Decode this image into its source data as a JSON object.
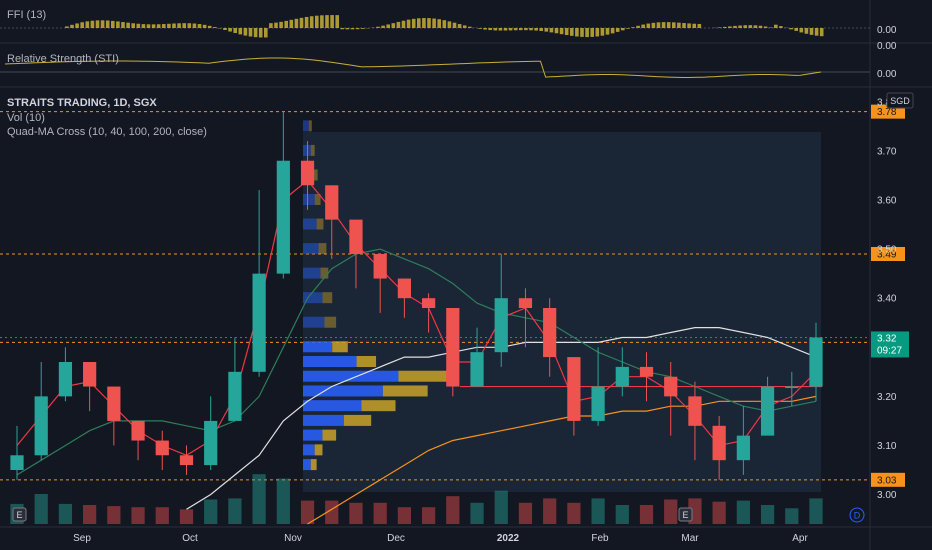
{
  "chart_data": {
    "type": "candlestick",
    "symbol_line": "STRAITS TRADING, 1D, SGX",
    "currency": "SGD",
    "indicators": [
      "Vol (10)",
      "Quad-MA Cross (10, 40, 100, 200, close)"
    ],
    "price_axis": {
      "range": [
        2.94,
        3.82
      ],
      "ticks": [
        "3.00",
        "3.10",
        "3.20",
        "3.30",
        "3.40",
        "3.50",
        "3.60",
        "3.70",
        "3.80"
      ]
    },
    "time_axis": {
      "labels": [
        "Sep",
        "Oct",
        "Nov",
        "Dec",
        "2022",
        "Feb",
        "Mar",
        "Apr"
      ]
    },
    "horizontal_levels": [
      {
        "value": 3.78,
        "label": "3.78",
        "color": "#f7931a"
      },
      {
        "value": 3.49,
        "label": "3.49",
        "color": "#f7931a"
      },
      {
        "value": 3.31,
        "label": "3.31",
        "color": "#f7931a"
      },
      {
        "value": 3.03,
        "label": "3.03",
        "color": "#f7931a"
      }
    ],
    "support_line": {
      "value": 3.22,
      "color": "#f23645"
    },
    "last_price": {
      "value": "3.32",
      "countdown": "09:27",
      "color": "#089981"
    },
    "series": {
      "dates": [
        "2021-08-16",
        "2021-08-23",
        "2021-08-30",
        "2021-09-06",
        "2021-09-13",
        "2021-09-20",
        "2021-09-27",
        "2021-10-04",
        "2021-10-11",
        "2021-10-18",
        "2021-10-25",
        "2021-11-01",
        "2021-11-08",
        "2021-11-15",
        "2021-11-22",
        "2021-11-29",
        "2021-12-06",
        "2021-12-13",
        "2021-12-20",
        "2021-12-27",
        "2022-01-03",
        "2022-01-10",
        "2022-01-17",
        "2022-01-24",
        "2022-01-31",
        "2022-02-07",
        "2022-02-14",
        "2022-02-21",
        "2022-02-28",
        "2022-03-07",
        "2022-03-14",
        "2022-03-21",
        "2022-03-28",
        "2022-04-04"
      ],
      "close": [
        3.08,
        3.2,
        3.27,
        3.22,
        3.15,
        3.11,
        3.08,
        3.06,
        3.15,
        3.25,
        3.45,
        3.68,
        3.63,
        3.56,
        3.49,
        3.44,
        3.4,
        3.38,
        3.22,
        3.29,
        3.4,
        3.38,
        3.28,
        3.15,
        3.22,
        3.26,
        3.24,
        3.2,
        3.14,
        3.07,
        3.12,
        3.22,
        3.22,
        3.32
      ],
      "high": [
        3.14,
        3.27,
        3.3,
        3.27,
        3.19,
        3.15,
        3.13,
        3.1,
        3.2,
        3.32,
        3.62,
        3.78,
        3.72,
        3.62,
        3.54,
        3.49,
        3.44,
        3.41,
        3.38,
        3.34,
        3.49,
        3.42,
        3.4,
        3.24,
        3.3,
        3.3,
        3.29,
        3.27,
        3.23,
        3.16,
        3.18,
        3.24,
        3.25,
        3.35
      ],
      "low": [
        3.03,
        3.07,
        3.19,
        3.17,
        3.1,
        3.07,
        3.05,
        3.04,
        3.05,
        3.16,
        3.24,
        3.44,
        3.58,
        3.48,
        3.42,
        3.37,
        3.36,
        3.33,
        3.2,
        3.22,
        3.26,
        3.3,
        3.24,
        3.12,
        3.14,
        3.2,
        3.19,
        3.12,
        3.07,
        3.03,
        3.04,
        3.14,
        3.18,
        3.19
      ],
      "ma10": [
        3.1,
        3.16,
        3.22,
        3.23,
        3.18,
        3.13,
        3.1,
        3.08,
        3.11,
        3.2,
        3.38,
        3.6,
        3.64,
        3.58,
        3.51,
        3.46,
        3.41,
        3.38,
        3.27,
        3.27,
        3.36,
        3.38,
        3.31,
        3.19,
        3.2,
        3.24,
        3.24,
        3.21,
        3.16,
        3.1,
        3.11,
        3.18,
        3.2,
        3.25
      ],
      "ma40": [
        3.04,
        3.07,
        3.1,
        3.13,
        3.15,
        3.15,
        3.15,
        3.14,
        3.13,
        3.15,
        3.2,
        3.3,
        3.4,
        3.46,
        3.49,
        3.5,
        3.48,
        3.46,
        3.43,
        3.39,
        3.37,
        3.36,
        3.35,
        3.32,
        3.29,
        3.27,
        3.25,
        3.24,
        3.22,
        3.2,
        3.18,
        3.17,
        3.18,
        3.19
      ],
      "ma100": [
        null,
        null,
        null,
        null,
        null,
        null,
        null,
        2.97,
        3.0,
        3.04,
        3.08,
        3.15,
        3.19,
        3.22,
        3.24,
        3.26,
        3.28,
        3.28,
        3.29,
        3.3,
        3.3,
        3.31,
        3.31,
        3.31,
        3.31,
        3.32,
        3.32,
        3.33,
        3.34,
        3.34,
        3.33,
        3.32,
        3.3,
        3.28
      ],
      "ma200": [
        null,
        null,
        null,
        null,
        null,
        null,
        null,
        null,
        null,
        null,
        null,
        null,
        2.94,
        2.97,
        3.0,
        3.03,
        3.06,
        3.09,
        3.11,
        3.12,
        3.13,
        3.14,
        3.15,
        3.16,
        3.16,
        3.17,
        3.17,
        3.18,
        3.18,
        3.19,
        3.19,
        3.19,
        3.19,
        3.2
      ]
    },
    "volume_profile": {
      "rows": [
        {
          "price": 3.75,
          "buy": 6,
          "sell": 3
        },
        {
          "price": 3.7,
          "buy": 8,
          "sell": 4
        },
        {
          "price": 3.65,
          "buy": 10,
          "sell": 5
        },
        {
          "price": 3.6,
          "buy": 12,
          "sell": 6
        },
        {
          "price": 3.55,
          "buy": 14,
          "sell": 7
        },
        {
          "price": 3.5,
          "buy": 16,
          "sell": 8
        },
        {
          "price": 3.45,
          "buy": 18,
          "sell": 8
        },
        {
          "price": 3.4,
          "buy": 20,
          "sell": 10
        },
        {
          "price": 3.35,
          "buy": 22,
          "sell": 12
        },
        {
          "price": 3.3,
          "buy": 30,
          "sell": 16
        },
        {
          "price": 3.27,
          "buy": 55,
          "sell": 20
        },
        {
          "price": 3.24,
          "buy": 98,
          "sell": 56
        },
        {
          "price": 3.21,
          "buy": 82,
          "sell": 46
        },
        {
          "price": 3.18,
          "buy": 60,
          "sell": 35
        },
        {
          "price": 3.15,
          "buy": 42,
          "sell": 28
        },
        {
          "price": 3.12,
          "buy": 20,
          "sell": 14
        },
        {
          "price": 3.09,
          "buy": 12,
          "sell": 8
        },
        {
          "price": 3.06,
          "buy": 8,
          "sell": 6
        }
      ]
    },
    "ffi_panel": {
      "title": "FFI (13)",
      "tick": "0.00"
    },
    "rs_panel": {
      "title": "Relative Strength (STI)",
      "ticks": [
        "0.00",
        "0.00"
      ]
    },
    "badges": {
      "event_left": "E",
      "event_right": "E",
      "dividend": "D"
    }
  },
  "colors": {
    "up": "#26a69a",
    "down": "#ef5350",
    "ma10": "#f23645",
    "ma40": "#2e7d5b",
    "ma100": "#e0e0e0",
    "ma200": "#f7931a",
    "ffi": "#c9b037",
    "rs": "#c9b037",
    "profile_buy": "#2962ff",
    "profile_sell": "#c9a227"
  }
}
